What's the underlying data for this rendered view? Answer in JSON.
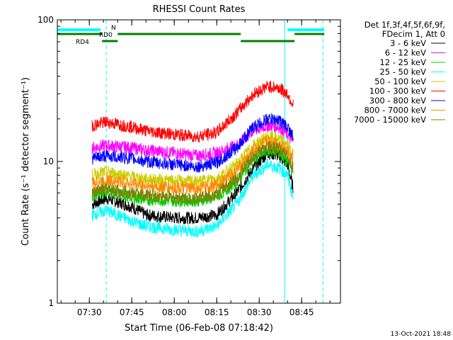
{
  "chart_data": {
    "type": "line",
    "title": "RHESSI Count Rates",
    "xlabel": "Start Time (06-Feb-08 07:18:42)",
    "ylabel": "Count Rate (s⁻¹ detector segment⁻¹)",
    "yscale": "log",
    "ylim": [
      1,
      100
    ],
    "xlim": [
      "07:18:42",
      "08:58:42"
    ],
    "x_ticks": [
      "07:30",
      "07:45",
      "08:00",
      "08:15",
      "08:30",
      "08:45"
    ],
    "y_ticks": [
      "1",
      "10",
      "100"
    ],
    "legend_header": [
      "Det 1f,3f,4f,5f,6f,9f,",
      "FDecim 1, Att 0"
    ],
    "legend_position": "right-outside",
    "x": [
      "07:31:00",
      "07:36:00",
      "07:45:00",
      "07:50:00",
      "08:00:00",
      "08:08:00",
      "08:15:00",
      "08:22:00",
      "08:28:00",
      "08:33:00",
      "08:37:00",
      "08:40:00",
      "08:42:00"
    ],
    "series": [
      {
        "name": "3 - 6 keV",
        "color": "#000000",
        "values": [
          5.0,
          5.5,
          4.8,
          4.2,
          4.0,
          4.0,
          4.2,
          6.0,
          9.0,
          11.5,
          11.0,
          9.5,
          6.5
        ]
      },
      {
        "name": "6 - 12 keV",
        "color": "#ff00ff",
        "values": [
          12.5,
          13.0,
          12.5,
          12.0,
          11.5,
          11.0,
          11.5,
          13.0,
          16.5,
          18.0,
          17.5,
          15.5,
          13.5
        ]
      },
      {
        "name": "12 - 25 keV",
        "color": "#00cc00",
        "values": [
          5.8,
          6.2,
          5.6,
          5.4,
          5.3,
          5.3,
          5.6,
          7.2,
          10.5,
          12.0,
          11.5,
          10.0,
          8.5
        ]
      },
      {
        "name": "25 - 50 keV",
        "color": "#00ffff",
        "values": [
          4.2,
          4.5,
          3.8,
          3.5,
          3.3,
          3.2,
          3.5,
          5.0,
          8.0,
          9.5,
          9.0,
          8.0,
          5.5
        ]
      },
      {
        "name": "50 - 100 keV",
        "color": "#cccc00",
        "values": [
          8.0,
          8.5,
          7.8,
          7.5,
          7.3,
          7.2,
          7.6,
          9.5,
          13.0,
          15.0,
          14.5,
          13.0,
          11.0
        ]
      },
      {
        "name": "100 - 300 keV",
        "color": "#ff0000",
        "values": [
          18.0,
          19.0,
          17.5,
          16.5,
          15.5,
          15.0,
          16.0,
          22.0,
          30.0,
          34.0,
          33.0,
          30.0,
          25.0
        ]
      },
      {
        "name": "300 - 800 keV",
        "color": "#0000ff",
        "values": [
          10.5,
          11.0,
          10.5,
          10.0,
          9.5,
          9.2,
          9.8,
          12.5,
          17.5,
          20.0,
          19.5,
          17.5,
          15.0
        ]
      },
      {
        "name": "800 - 7000 keV",
        "color": "#ff8800",
        "values": [
          7.0,
          7.4,
          7.0,
          6.7,
          6.5,
          6.4,
          6.8,
          8.6,
          12.0,
          14.0,
          13.5,
          12.0,
          10.0
        ]
      },
      {
        "name": "7000 - 15000 keV",
        "color": "#808000",
        "values": [
          6.0,
          6.4,
          6.0,
          5.8,
          5.6,
          5.5,
          5.9,
          7.6,
          11.0,
          12.8,
          12.2,
          11.0,
          9.0
        ]
      }
    ],
    "annotations": [
      {
        "label": "N",
        "color": "#00ffff",
        "segments": [
          [
            "07:18:42",
            "07:34:00"
          ],
          [
            "08:40:00",
            "08:53:00"
          ]
        ]
      },
      {
        "label": "RD0",
        "color": "#008000",
        "segments": [
          [
            "07:18:42",
            "07:34:30"
          ],
          [
            "07:40:00",
            "08:23:30"
          ],
          [
            "08:42:30",
            "08:53:00"
          ]
        ]
      },
      {
        "label": "RD4",
        "color": "#008000",
        "segments": [
          [
            "07:34:30",
            "07:40:00"
          ],
          [
            "08:23:30",
            "08:42:30"
          ]
        ]
      }
    ],
    "vertical_lines": [
      {
        "time": "07:18:42",
        "color": "#00ffff",
        "style": "solid"
      },
      {
        "time": "07:36:00",
        "color": "#00ffff",
        "style": "dashed"
      },
      {
        "time": "08:39:00",
        "color": "#00ffff",
        "style": "solid"
      },
      {
        "time": "08:52:30",
        "color": "#00ffff",
        "style": "dashed"
      }
    ]
  },
  "footer": {
    "timestamp": "13-Oct-2021 18:48"
  }
}
